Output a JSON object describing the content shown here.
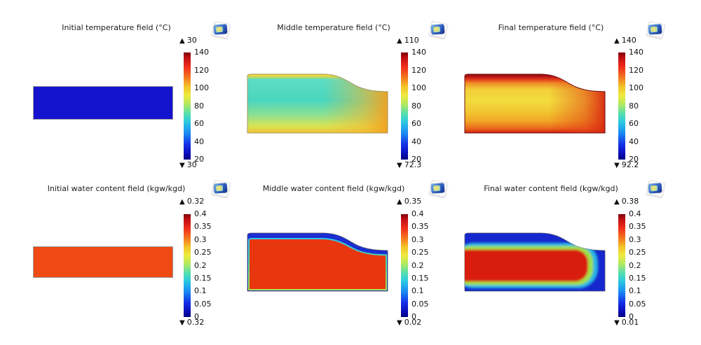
{
  "figure": {
    "background": "#ffffff",
    "source_app": "COMSOL-style simulation montage"
  },
  "icons": {
    "max_triangle": "▲",
    "min_triangle": "▼",
    "logo_name": "comsol-logo"
  },
  "colors": {
    "uniform_temperature_field": "#1414cf",
    "uniform_water_field": "#ee4a12",
    "colorbar_colormap": "jet (dark red top → dark blue bottom)",
    "temp_shape_outline": "#a39364",
    "water_outer_blue": "#1b2ed2",
    "water_core_red": "#d81a0e"
  },
  "panels": [
    {
      "id": "initial-temperature",
      "title": "Initial temperature field (°C)",
      "max_label": "30",
      "min_label": "30",
      "ticks": [
        "140",
        "120",
        "100",
        "80",
        "60",
        "40",
        "20"
      ]
    },
    {
      "id": "middle-temperature",
      "title": "Middle temperature field (°C)",
      "max_label": "110",
      "min_label": "72.3",
      "ticks": [
        "140",
        "120",
        "100",
        "80",
        "60",
        "40",
        "20"
      ]
    },
    {
      "id": "final-temperature",
      "title": "Final temperature field (°C)",
      "max_label": "140",
      "min_label": "92.2",
      "ticks": [
        "140",
        "120",
        "100",
        "80",
        "60",
        "40",
        "20"
      ]
    },
    {
      "id": "initial-water-content",
      "title": "Initial water content field (kgw/kgd)",
      "max_label": "0.32",
      "min_label": "0.32",
      "ticks": [
        "0.4",
        "0.35",
        "0.3",
        "0.25",
        "0.2",
        "0.15",
        "0.1",
        "0.05",
        "0"
      ]
    },
    {
      "id": "middle-water-content",
      "title": "Middle water content field (kgw/kgd)",
      "max_label": "0.35",
      "min_label": "0.02",
      "ticks": [
        "0.4",
        "0.35",
        "0.3",
        "0.25",
        "0.2",
        "0.15",
        "0.1",
        "0.05",
        "0"
      ]
    },
    {
      "id": "final-water-content",
      "title": "Final water content field (kgw/kgd)",
      "max_label": "0.38",
      "min_label": "0.01",
      "ticks": [
        "0.4",
        "0.35",
        "0.3",
        "0.25",
        "0.2",
        "0.15",
        "0.1",
        "0.05",
        "0"
      ]
    }
  ],
  "chart_data": [
    {
      "type": "heatmap",
      "title": "Initial temperature field (°C)",
      "unit": "°C",
      "colorbar": {
        "min": 20,
        "max": 140,
        "ticks": [
          140,
          120,
          100,
          80,
          60,
          40,
          20
        ],
        "colormap": "jet"
      },
      "field_max": 30,
      "field_min": 30,
      "field_summary": "uniform 30 °C; solid blue undeformed rectangle"
    },
    {
      "type": "heatmap",
      "title": "Middle temperature field (°C)",
      "unit": "°C",
      "colorbar": {
        "min": 20,
        "max": 140,
        "ticks": [
          140,
          120,
          100,
          80,
          60,
          40,
          20
        ],
        "colormap": "jet"
      },
      "field_max": 110,
      "field_min": 72.3,
      "field_summary": "shrunken profile (top-right sloped); teal ~75-85 °C interior, yellow ~95-100 °C lower/top boundary, orange ~105-110 °C right edge"
    },
    {
      "type": "heatmap",
      "title": "Final temperature field (°C)",
      "unit": "°C",
      "colorbar": {
        "min": 20,
        "max": 140,
        "ticks": [
          140,
          120,
          100,
          80,
          60,
          40,
          20
        ],
        "colormap": "jet"
      },
      "field_max": 140,
      "field_min": 92.2,
      "field_summary": "shrunken profile; yellow ~100-110 °C interior with dark-red ~130-140 °C top, right and bottom boundary layers"
    },
    {
      "type": "heatmap",
      "title": "Initial water content field (kgw/kgd)",
      "unit": "kgw/kgd",
      "colorbar": {
        "min": 0,
        "max": 0.4,
        "ticks": [
          0.4,
          0.35,
          0.3,
          0.25,
          0.2,
          0.15,
          0.1,
          0.05,
          0
        ],
        "colormap": "jet"
      },
      "field_max": 0.32,
      "field_min": 0.32,
      "field_summary": "uniform 0.32; solid orange-red undeformed rectangle"
    },
    {
      "type": "heatmap",
      "title": "Middle water content field (kgw/kgd)",
      "unit": "kgw/kgd",
      "colorbar": {
        "min": 0,
        "max": 0.4,
        "ticks": [
          0.4,
          0.35,
          0.3,
          0.25,
          0.2,
          0.15,
          0.1,
          0.05,
          0
        ],
        "colormap": "jet"
      },
      "field_max": 0.35,
      "field_min": 0.02,
      "field_summary": "red ~0.32-0.35 interior with dry blue ~0-0.05 band along curved top surface; thin cyan-green transition at bottom and right edges"
    },
    {
      "type": "heatmap",
      "title": "Final water content field (kgw/kgd)",
      "unit": "kgw/kgd",
      "colorbar": {
        "min": 0,
        "max": 0.4,
        "ticks": [
          0.4,
          0.35,
          0.3,
          0.25,
          0.2,
          0.15,
          0.1,
          0.05,
          0
        ],
        "colormap": "jet"
      },
      "field_max": 0.38,
      "field_min": 0.01,
      "field_summary": "dry blue ~0-0.05 outer region with rounded wet red ~0.35 core; rainbow cyan-green-yellow transition ring"
    }
  ]
}
